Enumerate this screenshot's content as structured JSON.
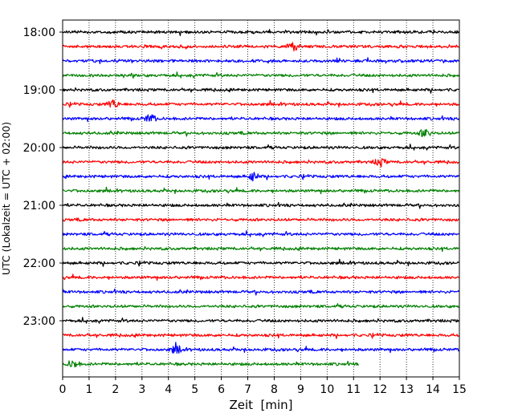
{
  "chart_data": {
    "type": "line",
    "title": "",
    "xlabel": "Zeit  [min]",
    "ylabel": "UTC (Lokalzeit = UTC + 02:00)",
    "xlim": [
      0,
      15
    ],
    "x_ticks": [
      0,
      1,
      2,
      3,
      4,
      5,
      6,
      7,
      8,
      9,
      10,
      11,
      12,
      13,
      14,
      15
    ],
    "x_tick_labels": [
      "0",
      "1",
      "2",
      "3",
      "4",
      "5",
      "6",
      "7",
      "8",
      "9",
      "10",
      "11",
      "12",
      "13",
      "14",
      "15"
    ],
    "y_tick_labels": [
      "18:00",
      "19:00",
      "20:00",
      "21:00",
      "22:00",
      "23:00"
    ],
    "grid": "vertical dotted",
    "trace_colors": [
      "#000000",
      "#ff0000",
      "#0000ff",
      "#008000"
    ],
    "traces": [
      {
        "start": "18:00",
        "end_min": 15
      },
      {
        "start": "18:15",
        "end_min": 15,
        "events_min": [
          8.7
        ]
      },
      {
        "start": "18:30",
        "end_min": 15
      },
      {
        "start": "18:45",
        "end_min": 15
      },
      {
        "start": "19:00",
        "end_min": 15
      },
      {
        "start": "19:15",
        "end_min": 15,
        "events_min": [
          1.9
        ]
      },
      {
        "start": "19:30",
        "end_min": 15,
        "events_min": [
          3.3
        ]
      },
      {
        "start": "19:45",
        "end_min": 15,
        "events_min": [
          13.7
        ]
      },
      {
        "start": "20:00",
        "end_min": 15
      },
      {
        "start": "20:15",
        "end_min": 15,
        "events_min": [
          12.0
        ]
      },
      {
        "start": "20:30",
        "end_min": 15,
        "events_min": [
          7.2
        ]
      },
      {
        "start": "20:45",
        "end_min": 15
      },
      {
        "start": "21:00",
        "end_min": 15
      },
      {
        "start": "21:15",
        "end_min": 15
      },
      {
        "start": "21:30",
        "end_min": 15
      },
      {
        "start": "21:45",
        "end_min": 15
      },
      {
        "start": "22:00",
        "end_min": 15
      },
      {
        "start": "22:15",
        "end_min": 15
      },
      {
        "start": "22:30",
        "end_min": 15
      },
      {
        "start": "22:45",
        "end_min": 15
      },
      {
        "start": "23:00",
        "end_min": 15
      },
      {
        "start": "23:15",
        "end_min": 15
      },
      {
        "start": "23:30",
        "end_min": 15,
        "events_min": [
          4.3
        ]
      },
      {
        "start": "23:45",
        "end_min": 11.2,
        "events_min": [
          0.4
        ]
      }
    ]
  }
}
